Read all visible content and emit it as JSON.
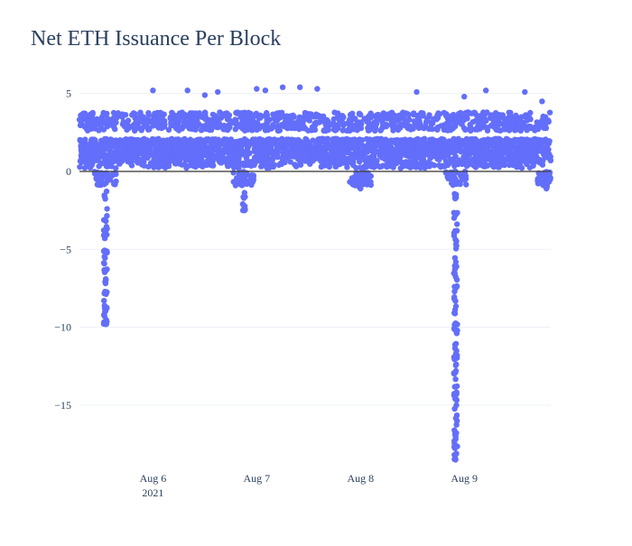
{
  "chart_data": {
    "type": "scatter",
    "title": "Net ETH Issuance Per Block",
    "xlabel": "",
    "ylabel": "",
    "x_range": [
      "2021-08-05T07:00:00",
      "2021-08-09T20:00:00"
    ],
    "ylim": [
      -19,
      5.5
    ],
    "y_ticks": [
      5,
      0,
      -5,
      -10,
      -15
    ],
    "y_tick_labels": [
      "5",
      "0",
      "−5",
      "−10",
      "−15"
    ],
    "x_ticks": [
      "2021-08-06",
      "2021-08-07",
      "2021-08-08",
      "2021-08-09"
    ],
    "x_tick_labels": [
      "Aug 6",
      "Aug 7",
      "Aug 8",
      "Aug 9"
    ],
    "x_tick_year": "2021",
    "grid": true,
    "zeroline": true,
    "legend": "none",
    "marker_color": "#636efa",
    "series": [
      {
        "name": "",
        "description_points": "Dense band of per-block net issuance values: baseline cluster between about 0.2 and 2.1 ETH, upper band between about 2.5 and 3.8 ETH, sparse outliers up to about 5.3 ETH, and deep negative spikes.",
        "band_low": [
          0.2,
          2.1
        ],
        "band_high": [
          2.6,
          3.8
        ],
        "outliers_high": [
          [
            "2021-08-06T00:00:00",
            5.2
          ],
          [
            "2021-08-06T08:00:00",
            5.2
          ],
          [
            "2021-08-06T12:00:00",
            4.9
          ],
          [
            "2021-08-06T15:00:00",
            5.1
          ],
          [
            "2021-08-07T00:00:00",
            5.3
          ],
          [
            "2021-08-07T02:00:00",
            5.2
          ],
          [
            "2021-08-07T06:00:00",
            5.4
          ],
          [
            "2021-08-07T10:00:00",
            5.4
          ],
          [
            "2021-08-07T14:00:00",
            5.3
          ],
          [
            "2021-08-08T13:00:00",
            5.1
          ],
          [
            "2021-08-09T00:00:00",
            4.8
          ],
          [
            "2021-08-09T05:00:00",
            5.2
          ],
          [
            "2021-08-09T14:00:00",
            5.1
          ],
          [
            "2021-08-09T18:00:00",
            4.5
          ]
        ],
        "spikes": [
          {
            "x": "2021-08-05T13:00:00",
            "min": -9.8
          },
          {
            "x": "2021-08-06T21:00:00",
            "min": -2.5
          },
          {
            "x": "2021-08-08T00:00:00",
            "min": -1.1
          },
          {
            "x": "2021-08-08T22:00:00",
            "min": -18.5
          },
          {
            "x": "2021-08-09T19:00:00",
            "min": -1.1
          }
        ]
      }
    ]
  }
}
